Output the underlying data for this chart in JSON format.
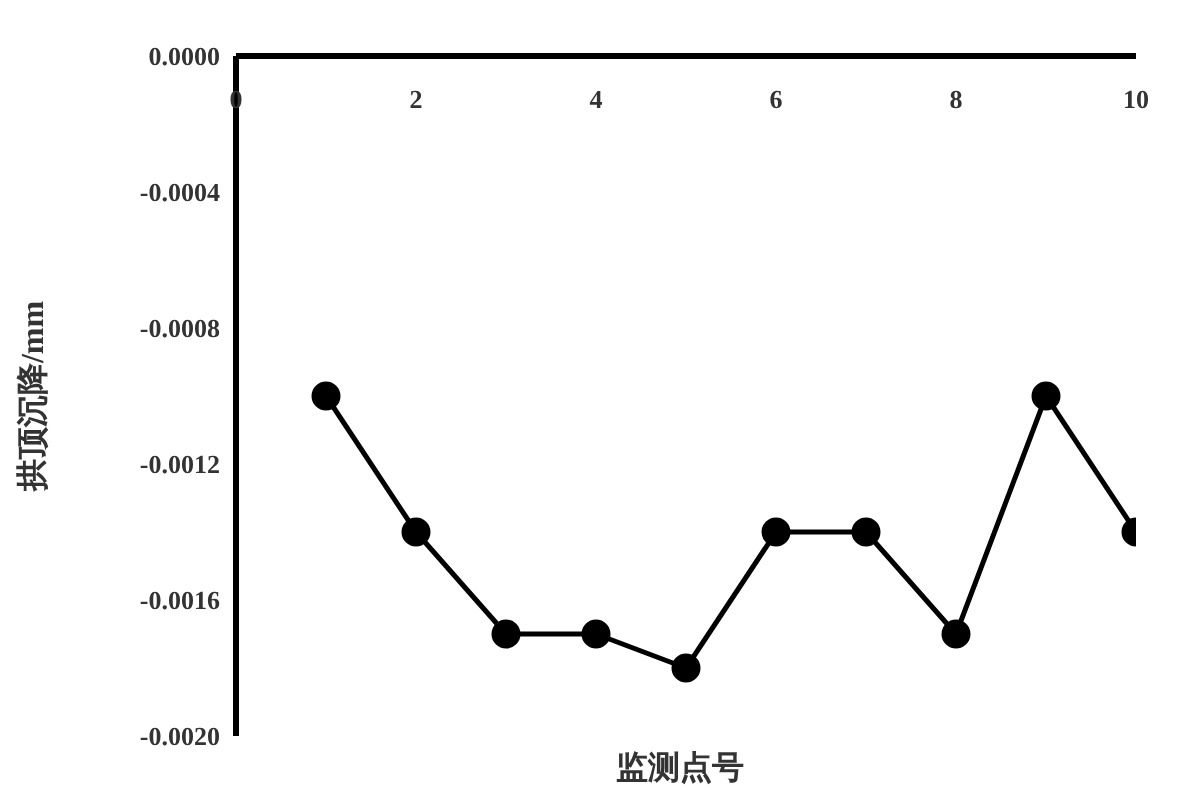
{
  "chart_data": {
    "type": "line",
    "xlabel": "监测点号",
    "ylabel": "拱顶沉降/mm",
    "x": [
      1,
      2,
      3,
      4,
      5,
      6,
      7,
      8,
      9,
      10
    ],
    "series": [
      {
        "color": "#000000",
        "values": [
          -0.001,
          -0.0014,
          -0.0017,
          -0.0017,
          -0.0018,
          -0.0014,
          -0.0014,
          -0.0017,
          -0.001,
          -0.0014
        ]
      }
    ],
    "xlim": [
      0,
      10
    ],
    "xticks": [
      0,
      2,
      4,
      6,
      8,
      10
    ],
    "ylim": [
      -0.002,
      0.0
    ],
    "yticks": [
      {
        "value": -0.002,
        "label": "-0.0020"
      },
      {
        "value": -0.0016,
        "label": "-0.0016"
      },
      {
        "value": -0.0012,
        "label": "-0.0012"
      },
      {
        "value": -0.0008,
        "label": "-0.0008"
      },
      {
        "value": -0.0004,
        "label": "-0.0004"
      },
      {
        "value": 0,
        "label": "0.0000"
      }
    ],
    "marker": "circle",
    "line_style": "solid",
    "grid": false,
    "legend": false
  }
}
